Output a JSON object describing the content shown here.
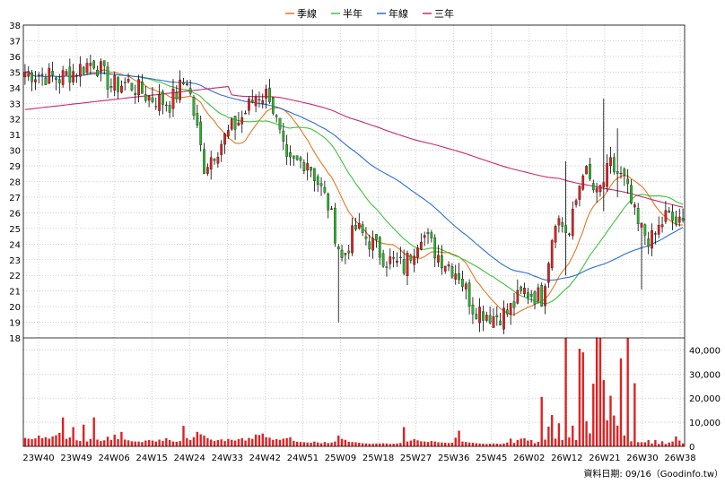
{
  "legend": [
    {
      "name": "季線",
      "color": "#e87522"
    },
    {
      "name": "半年",
      "color": "#3cc43c"
    },
    {
      "name": "年線",
      "color": "#2a6fd6"
    },
    {
      "name": "三年",
      "color": "#cc2a6b"
    }
  ],
  "footer": "資料日期: 09/16（Goodinfo.tw）",
  "colors": {
    "up": "#e02020",
    "down": "#2ab42a",
    "volume": "#e02020",
    "grid": "#b0b0b0"
  },
  "chart_data": [
    {
      "type": "candlestick",
      "price_axis": {
        "min": 18,
        "max": 38,
        "ticks": [
          18,
          19,
          20,
          21,
          22,
          23,
          24,
          25,
          26,
          27,
          28,
          29,
          30,
          31,
          32,
          33,
          34,
          35,
          36,
          37,
          38
        ]
      },
      "x_tick_labels": [
        "23W40",
        "23W49",
        "24W06",
        "24W15",
        "24W24",
        "24W33",
        "24W42",
        "24W51",
        "25W09",
        "25W18",
        "25W27",
        "25W36",
        "25W45",
        "26W02",
        "26W12",
        "26W21",
        "26W30",
        "26W38"
      ],
      "close_anchors": [
        [
          0,
          35.0
        ],
        [
          10,
          34.6
        ],
        [
          20,
          35.7
        ],
        [
          25,
          34.1
        ],
        [
          30,
          34.3
        ],
        [
          36,
          33.4
        ],
        [
          42,
          33.0
        ],
        [
          47,
          34.6
        ],
        [
          52,
          29.0
        ],
        [
          58,
          30.8
        ],
        [
          63,
          32.1
        ],
        [
          67,
          33.5
        ],
        [
          71,
          33.6
        ],
        [
          76,
          29.0
        ],
        [
          82,
          29.4
        ],
        [
          88,
          26.5
        ],
        [
          92,
          23.0
        ],
        [
          96,
          25.0
        ],
        [
          100,
          24.2
        ],
        [
          105,
          23.0
        ],
        [
          110,
          22.5
        ],
        [
          115,
          24.8
        ],
        [
          120,
          23.3
        ],
        [
          126,
          22.1
        ],
        [
          130,
          20.0
        ],
        [
          136,
          19.4
        ],
        [
          140,
          19.6
        ],
        [
          145,
          21.0
        ],
        [
          150,
          20.6
        ],
        [
          154,
          25.8
        ],
        [
          158,
          24.6
        ],
        [
          162,
          28.9
        ],
        [
          166,
          27.0
        ],
        [
          170,
          29.0
        ],
        [
          174,
          28.0
        ],
        [
          178,
          25.1
        ],
        [
          182,
          24.2
        ],
        [
          186,
          25.8
        ],
        [
          190,
          25.2
        ]
      ],
      "spikes": [
        [
          91,
          19.0,
          24.0
        ],
        [
          157,
          22.0,
          29.3
        ],
        [
          168,
          26.1,
          33.3
        ],
        [
          172,
          27.0,
          31.4
        ],
        [
          179,
          21.1,
          24.1
        ]
      ],
      "volume_axis": {
        "min": 0,
        "max": 45000,
        "ticks": [
          0,
          10000,
          20000,
          30000,
          40000
        ],
        "tick_labels": [
          "0",
          "10,000",
          "20,000",
          "30,000",
          "40,000"
        ]
      },
      "volume_base": [
        3500,
        3200,
        3000,
        3300,
        4500,
        3400,
        3800,
        3200,
        4100,
        4600,
        5600,
        3300,
        3100,
        3700,
        2800,
        2500,
        2200,
        2200,
        2000,
        3100,
        2400,
        2800,
        2200,
        2500,
        4000,
        2600,
        4800,
        3000,
        6000,
        2800,
        2500,
        2100,
        2000,
        2000,
        1800,
        2400,
        2600,
        2400,
        2000,
        2800,
        2200,
        3400,
        2600,
        2000,
        1900,
        2200,
        2600,
        3400,
        2600,
        3800,
        6000,
        5000,
        4500,
        3400,
        2800,
        2200,
        2600,
        2900,
        2200,
        3100,
        2700,
        2400,
        3000,
        3400,
        2400,
        3500,
        3100,
        4900,
        4700,
        5300,
        3800,
        3600,
        2700,
        3000,
        2700,
        3200,
        3400,
        3800,
        2300,
        1900,
        1800,
        1700,
        1600,
        1500,
        2000,
        1600,
        1300,
        1800,
        1400,
        1600,
        2000,
        4500,
        3100,
        2700,
        1900,
        1800,
        1700,
        1500,
        1300,
        1200,
        1100,
        1100,
        1200,
        1200,
        1300,
        1200,
        1000,
        1100,
        1200,
        1400,
        1600,
        2000,
        2400,
        3000,
        2500,
        2100,
        2000,
        1800,
        2200,
        2000,
        1700,
        1600,
        1500,
        1400,
        1500,
        3600,
        2500,
        2000,
        1800,
        1600,
        1500,
        1300,
        1200,
        1100,
        1000,
        1100,
        1200,
        1100,
        1000,
        1200,
        1600,
        3200,
        1400,
        2600,
        3200,
        3400,
        2400,
        2600,
        1300,
        1900,
        9600,
        2800,
        8200,
        42000,
        3200,
        9600,
        2600,
        45000,
        3700,
        8600,
        2600,
        19200,
        6600,
        10400,
        5400,
        23500,
        45200,
        4200,
        27500,
        10800,
        6800,
        12800,
        8600,
        2900,
        4500,
        2400,
        2100,
        2300,
        1700,
        1700,
        1700,
        2600,
        1200,
        2600,
        1000,
        2100,
        1000,
        1600,
        2000,
        4100,
        2400,
        1200
      ],
      "volume_spikes": [
        [
          11,
          12000
        ],
        [
          14,
          8000
        ],
        [
          17,
          9000
        ],
        [
          20,
          12000
        ],
        [
          46,
          8500
        ],
        [
          110,
          8000
        ],
        [
          126,
          6500
        ],
        [
          150,
          20500
        ],
        [
          153,
          13000
        ],
        [
          161,
          40500
        ],
        [
          162,
          39000
        ],
        [
          165,
          26000
        ],
        [
          167,
          45000
        ],
        [
          170,
          21000
        ],
        [
          173,
          36500
        ],
        [
          175,
          45000
        ],
        [
          177,
          26200
        ]
      ]
    }
  ]
}
